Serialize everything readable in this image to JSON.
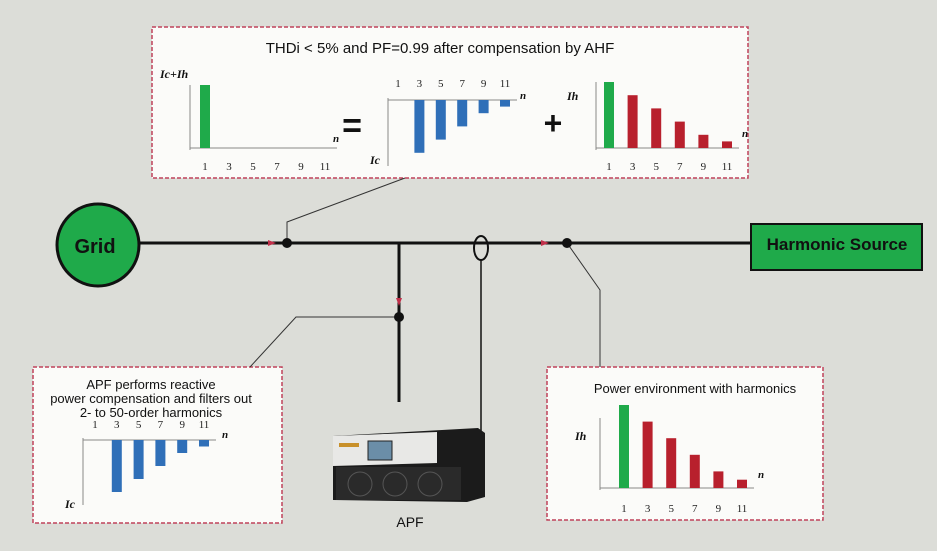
{
  "top_box": {
    "title": "THDi < 5% and PF=0.99 after compensation by  AHF",
    "equals": "=",
    "plus": "+"
  },
  "grid_label": "Grid",
  "harmonic_source_label": "Harmonic Source",
  "left_box": {
    "line1": "APF performs reactive",
    "line2": "power compensation and filters out",
    "line3": "2- to 50-order harmonics"
  },
  "right_box": {
    "title": "Power environment with harmonics"
  },
  "apf_label": "APF",
  "colors": {
    "background": "#dcddd8",
    "green": "#1faa4a",
    "red": "#b8202d",
    "blue": "#2f6fb8",
    "box_border": "#c0435a"
  },
  "chart_data": [
    {
      "id": "sum",
      "type": "bar",
      "ylabel": "Ic+Ih",
      "xlabel": "n",
      "categories": [
        "1",
        "3",
        "5",
        "7",
        "9",
        "11"
      ],
      "values": [
        1.0,
        0,
        0,
        0,
        0,
        0
      ],
      "colors": [
        "green",
        "none",
        "none",
        "none",
        "none",
        "none"
      ]
    },
    {
      "id": "ic_top",
      "type": "bar",
      "ylabel": "Ic",
      "xlabel": "n",
      "categories": [
        "1",
        "3",
        "5",
        "7",
        "9",
        "11"
      ],
      "values": [
        0,
        -0.8,
        -0.6,
        -0.4,
        -0.2,
        -0.1
      ],
      "colors": [
        "none",
        "blue",
        "blue",
        "blue",
        "blue",
        "blue"
      ]
    },
    {
      "id": "ih_top",
      "type": "bar",
      "ylabel": "Ih",
      "xlabel": "n",
      "categories": [
        "1",
        "3",
        "5",
        "7",
        "9",
        "11"
      ],
      "values": [
        1.0,
        0.8,
        0.6,
        0.4,
        0.2,
        0.1
      ],
      "colors": [
        "green",
        "red",
        "red",
        "red",
        "red",
        "red"
      ]
    },
    {
      "id": "ic_left",
      "type": "bar",
      "ylabel": "Ic",
      "xlabel": "n",
      "categories": [
        "1",
        "3",
        "5",
        "7",
        "9",
        "11"
      ],
      "values": [
        0,
        -0.8,
        -0.6,
        -0.4,
        -0.2,
        -0.1
      ],
      "colors": [
        "none",
        "blue",
        "blue",
        "blue",
        "blue",
        "blue"
      ]
    },
    {
      "id": "ih_right",
      "type": "bar",
      "ylabel": "Ih",
      "xlabel": "n",
      "categories": [
        "1",
        "3",
        "5",
        "7",
        "9",
        "11"
      ],
      "values": [
        1.0,
        0.8,
        0.6,
        0.4,
        0.2,
        0.1
      ],
      "colors": [
        "green",
        "red",
        "red",
        "red",
        "red",
        "red"
      ]
    }
  ]
}
